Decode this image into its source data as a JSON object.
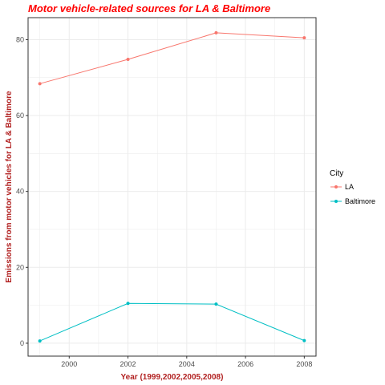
{
  "chart_data": {
    "type": "line",
    "title": "Motor vehicle-related sources for LA & Baltimore",
    "xlabel": "Year (1999,2002,2005,2008)",
    "ylabel": "Emissions from motor vehicles for LA & Baltimore",
    "x": [
      1999,
      2002,
      2005,
      2008
    ],
    "xlim": [
      1998.6,
      2008.4
    ],
    "ylim": [
      -3.4,
      85.8
    ],
    "xticks": [
      2000,
      2002,
      2004,
      2006,
      2008
    ],
    "yticks": [
      0,
      20,
      40,
      60,
      80
    ],
    "grid": true,
    "legend": {
      "title": "City",
      "position": "right"
    },
    "series": [
      {
        "name": "LA",
        "color": "#f8766d",
        "values": [
          68.4,
          74.8,
          81.8,
          80.5
        ]
      },
      {
        "name": "Baltimore",
        "color": "#00bfc4",
        "values": [
          0.6,
          10.5,
          10.3,
          0.7
        ]
      }
    ],
    "colors": {
      "title": "#ff0000",
      "axis_title": "#b22222",
      "grid": "#ebebeb",
      "panel_border": "#333333"
    }
  }
}
